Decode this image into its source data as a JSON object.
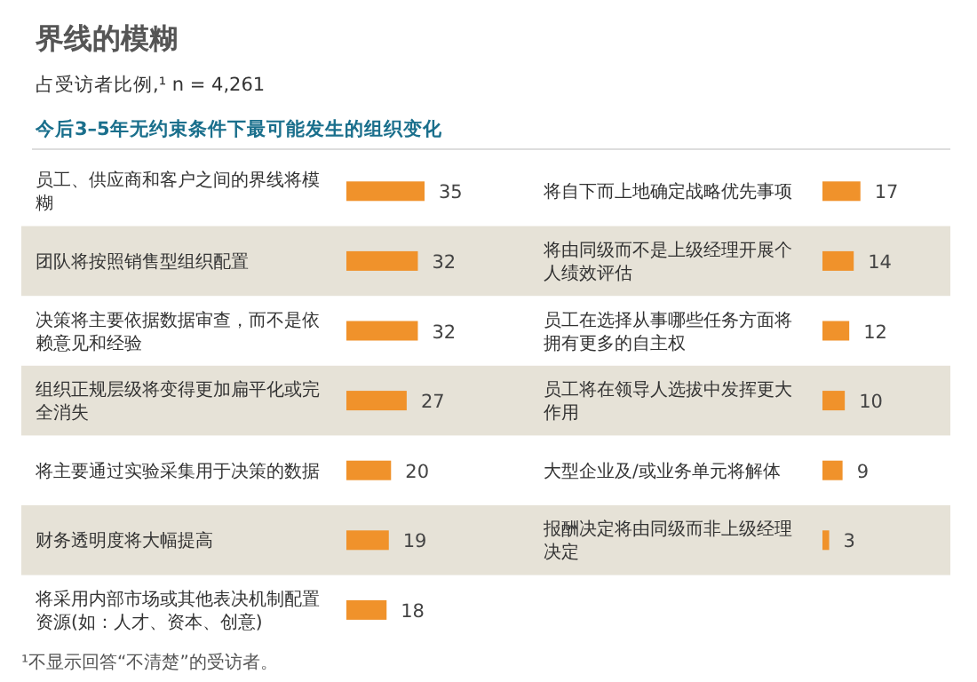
{
  "chart_data": [
    {
      "type": "bar",
      "orientation": "horizontal",
      "title": "界线的模糊",
      "subtitle": "占受访者比例,¹ n = 4,261",
      "annotations": [
        "今后3–5年无约束条件下最可能发生的组织变化",
        "¹不显示回答“不清楚”的受访者。"
      ],
      "categories": [
        "员工、供应商和客户之间的界线将模糊",
        "团队将按照销售型组织配置",
        "决策将主要依据数据审查，而不是依赖意见和经验",
        "组织正规层级将变得更加扁平化或完全消失",
        "将主要通过实验采集用于决策的数据",
        "财务透明度将大幅提高",
        "将采用内部市场或其他表决机制配置资源(如：人才、资本、创意)"
      ],
      "values": [
        35,
        32,
        32,
        27,
        20,
        19,
        18
      ],
      "color": "#f0922b",
      "data_labels": true
    },
    {
      "type": "bar",
      "orientation": "horizontal",
      "categories": [
        "将自下而上地确定战略优先事项",
        "将由同级而不是上级经理开展个人绩效评估",
        "员工在选择从事哪些任务方面将拥有更多的自主权",
        "员工将在领导人选拔中发挥更大作用",
        "大型企业及/或业务单元将解体",
        "报酬决定将由同级而非上级经理决定"
      ],
      "values": [
        17,
        14,
        12,
        10,
        9,
        3
      ],
      "color": "#f0922b",
      "data_labels": true
    }
  ]
}
